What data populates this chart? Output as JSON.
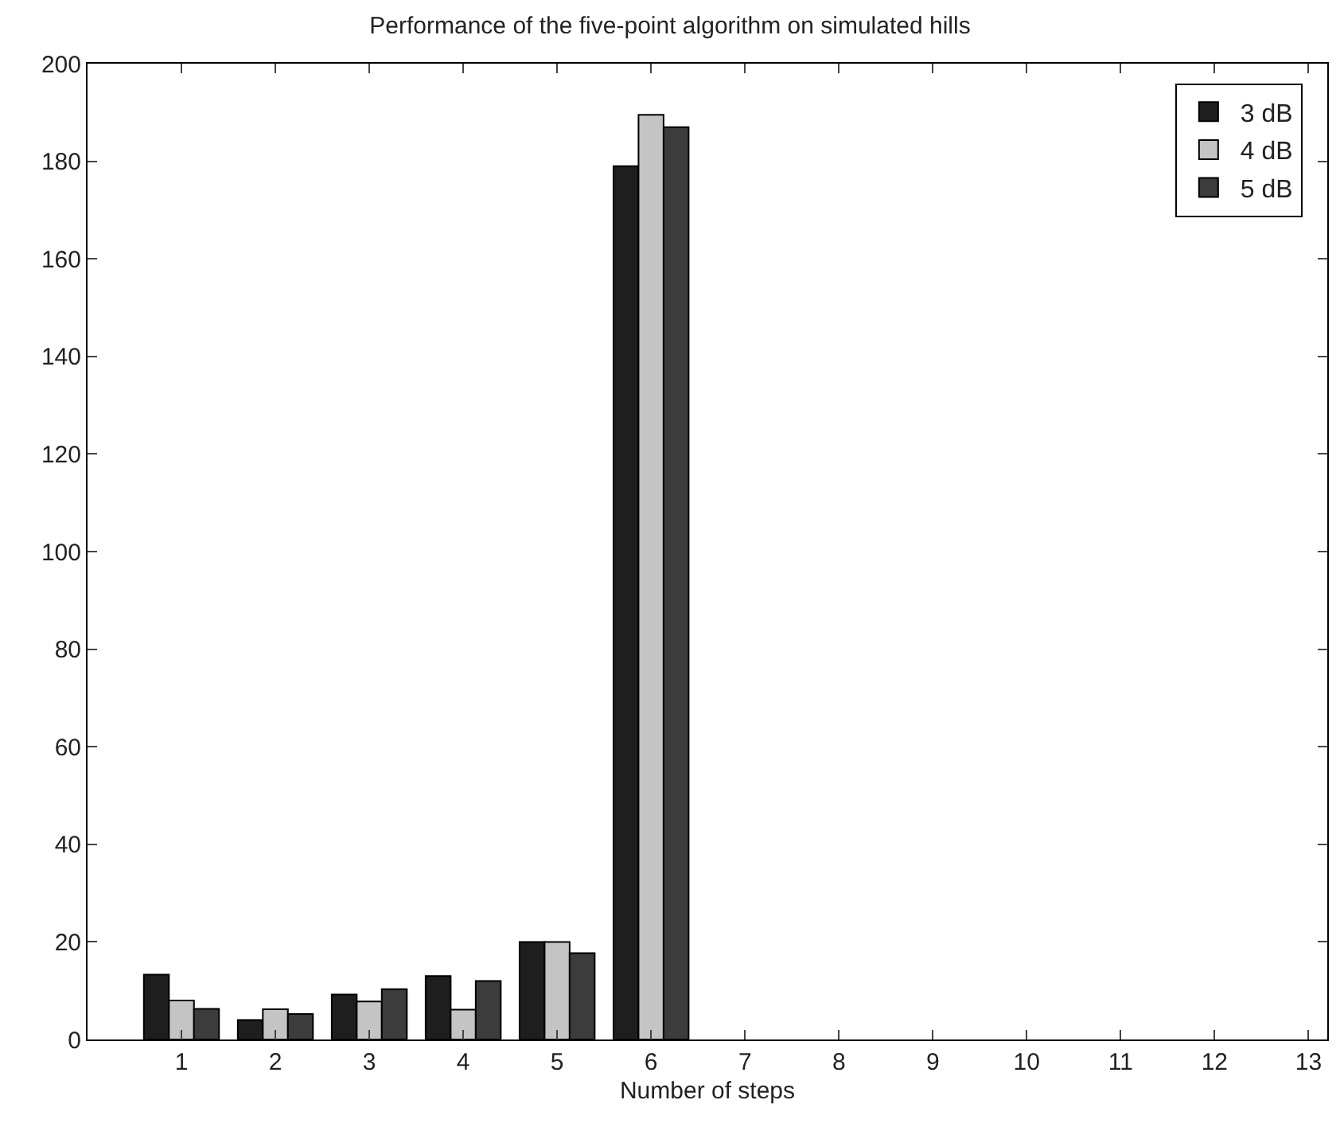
{
  "chart_data": {
    "type": "bar",
    "title": "Performance of the five-point algorithm on simulated hills",
    "xlabel": "Number of steps",
    "x": [
      1,
      2,
      3,
      4,
      5,
      6
    ],
    "series": [
      {
        "name": "3 dB",
        "color": "#1e1e1e",
        "values": [
          13.3,
          4,
          9.2,
          13,
          20,
          179
        ]
      },
      {
        "name": "4 dB",
        "color": "#c4c4c4",
        "values": [
          8,
          6.2,
          7.8,
          6.1,
          20,
          189.5
        ]
      },
      {
        "name": "5 dB",
        "color": "#3c3c3c",
        "values": [
          6.3,
          5.2,
          10.3,
          12,
          17.7,
          187
        ]
      }
    ],
    "xlim": [
      0,
      13.2
    ],
    "xticks": [
      1,
      2,
      3,
      4,
      5,
      6,
      7,
      8,
      9,
      10,
      11,
      12,
      13
    ],
    "ylim": [
      0,
      200
    ],
    "yticks": [
      0,
      20,
      40,
      60,
      80,
      100,
      120,
      140,
      160,
      180,
      200
    ],
    "legend": "top right"
  }
}
